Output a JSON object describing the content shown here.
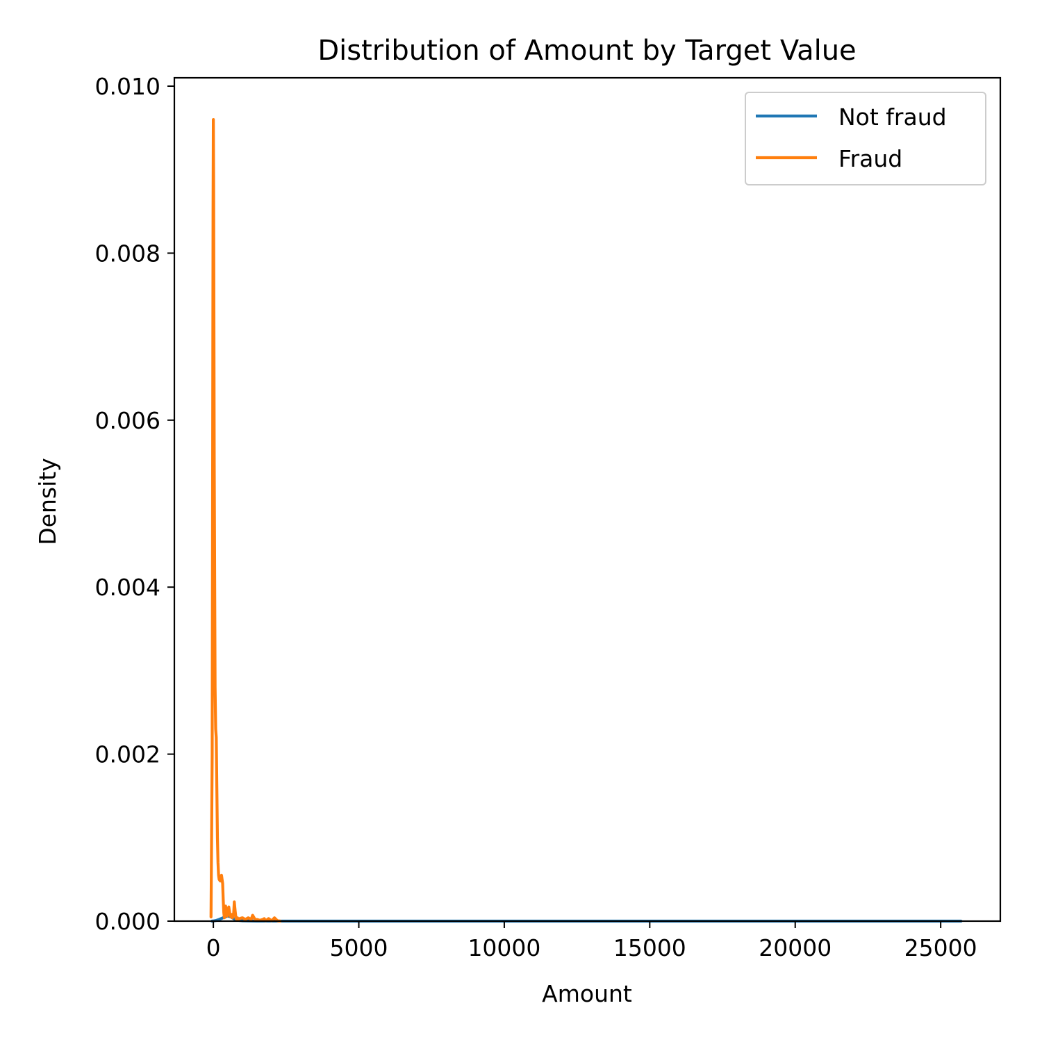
{
  "chart_data": {
    "type": "line",
    "title": "Distribution of Amount by Target Value",
    "xlabel": "Amount",
    "ylabel": "Density",
    "xlim": [
      -1340,
      27050
    ],
    "ylim": [
      0,
      0.0101
    ],
    "xticks": [
      0,
      5000,
      10000,
      15000,
      20000,
      25000
    ],
    "xtick_labels": [
      "0",
      "5000",
      "10000",
      "15000",
      "20000",
      "25000"
    ],
    "yticks": [
      0,
      0.002,
      0.004,
      0.006,
      0.008,
      0.01
    ],
    "ytick_labels": [
      "0.000",
      "0.002",
      "0.004",
      "0.006",
      "0.008",
      "0.010"
    ],
    "grid": false,
    "legend_position": "top-right",
    "series": [
      {
        "name": "Not fraud",
        "color": "#1f77b4",
        "x": [
          -50,
          0,
          100,
          200,
          300,
          400,
          500,
          600,
          700,
          800,
          1000,
          1500,
          2000,
          5000,
          10000,
          15000,
          20000,
          25000,
          25700
        ],
        "y": [
          0,
          2e-06,
          8e-06,
          2e-05,
          3.5e-05,
          5e-05,
          6e-05,
          5e-05,
          3e-05,
          1.2e-05,
          4e-06,
          1e-06,
          5e-07,
          0,
          0,
          0,
          0,
          0,
          0
        ]
      },
      {
        "name": "Fraud",
        "color": "#ff7f0e",
        "x": [
          -80,
          -40,
          -10,
          0,
          10,
          30,
          60,
          80,
          100,
          120,
          140,
          160,
          180,
          200,
          240,
          280,
          320,
          340,
          360,
          380,
          400,
          420,
          450,
          480,
          500,
          530,
          560,
          600,
          630,
          660,
          700,
          720,
          750,
          780,
          800,
          830,
          860,
          900,
          1000,
          1100,
          1200,
          1300,
          1350,
          1400,
          1450,
          1500,
          1600,
          1700,
          1750,
          1800,
          1900,
          2000,
          2050,
          2100,
          2200,
          2300
        ],
        "y": [
          5e-05,
          0.002,
          0.0085,
          0.0096,
          0.0088,
          0.0055,
          0.0028,
          0.0023,
          0.0022,
          0.0016,
          0.001,
          0.0007,
          0.00055,
          0.0005,
          0.00048,
          0.00055,
          0.00045,
          0.00025,
          0.0001,
          4e-05,
          8e-05,
          0.00018,
          0.00012,
          6e-05,
          0.0001,
          0.00017,
          0.0001,
          5e-05,
          8e-05,
          4e-05,
          0.0001,
          0.00023,
          0.00012,
          3e-05,
          2e-05,
          4e-05,
          2e-05,
          3e-05,
          4e-05,
          2e-05,
          4e-05,
          2e-05,
          7e-05,
          4e-05,
          1e-05,
          2e-05,
          1e-05,
          2e-05,
          3e-05,
          5e-06,
          3e-05,
          5e-06,
          2e-05,
          4e-05,
          5e-06,
          0
        ]
      }
    ]
  }
}
